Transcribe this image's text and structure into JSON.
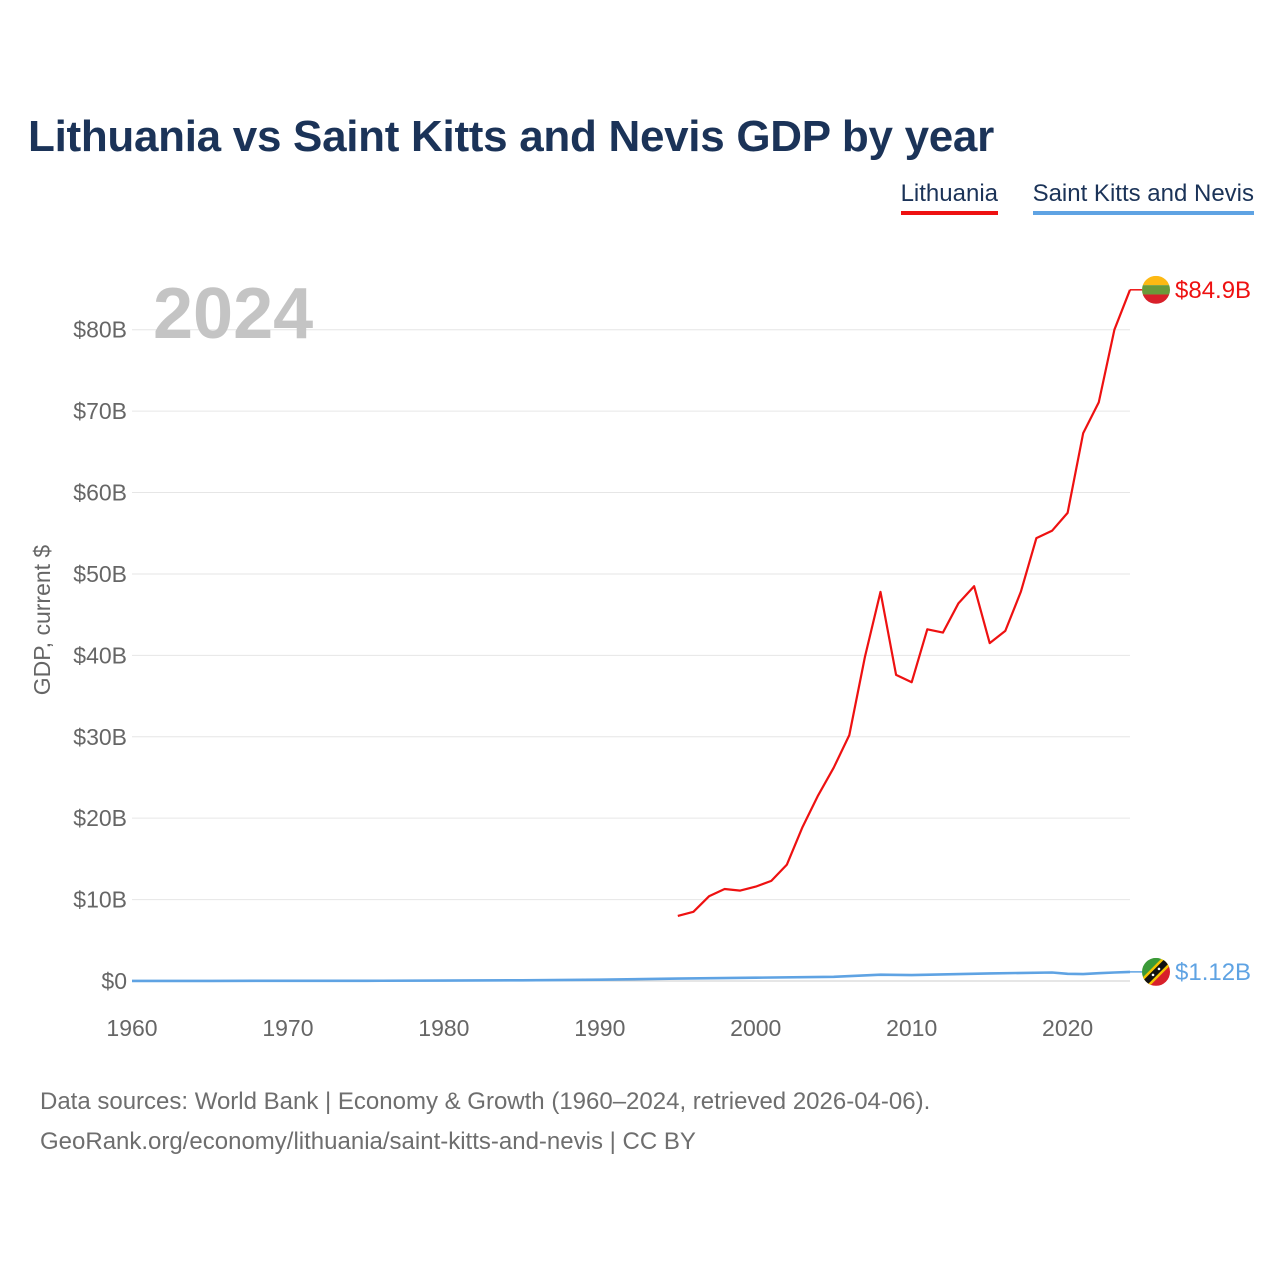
{
  "title": "Lithuania vs Saint Kitts and Nevis GDP by year",
  "legend": [
    {
      "label": "Lithuania",
      "color": "#ee1111"
    },
    {
      "label": "Saint Kitts and Nevis",
      "color": "#5fa3e3"
    }
  ],
  "footer": {
    "line1": "Data sources: World Bank | Economy & Growth (1960–2024, retrieved 2026-04-06).",
    "line2": "GeoRank.org/economy/lithuania/saint-kitts-and-nevis | CC BY"
  },
  "chart_data": {
    "type": "line",
    "title": "Lithuania vs Saint Kitts and Nevis GDP by year",
    "year_label": "2024",
    "xlabel": "",
    "ylabel": "GDP, current $",
    "xlim": [
      1960,
      2024
    ],
    "ylim": [
      0,
      85
    ],
    "units": "billions of current US$",
    "x_ticks": [
      1960,
      1970,
      1980,
      1990,
      2000,
      2010,
      2020
    ],
    "y_ticks": [
      0,
      10,
      20,
      30,
      40,
      50,
      60,
      70,
      80
    ],
    "y_tick_labels": [
      "$0",
      "$10B",
      "$20B",
      "$30B",
      "$40B",
      "$50B",
      "$60B",
      "$70B",
      "$80B"
    ],
    "series": [
      {
        "name": "Lithuania",
        "color": "#ee1111",
        "end_label": "$84.9B",
        "x": [
          1995,
          1996,
          1997,
          1998,
          1999,
          2000,
          2001,
          2002,
          2003,
          2004,
          2005,
          2006,
          2007,
          2008,
          2009,
          2010,
          2011,
          2012,
          2013,
          2014,
          2015,
          2016,
          2017,
          2018,
          2019,
          2020,
          2021,
          2022,
          2023,
          2024
        ],
        "values": [
          8.0,
          8.5,
          10.4,
          11.3,
          11.1,
          11.6,
          12.3,
          14.3,
          18.9,
          22.8,
          26.2,
          30.2,
          39.8,
          47.8,
          37.6,
          36.7,
          43.2,
          42.8,
          46.4,
          48.5,
          41.5,
          43.0,
          47.8,
          54.4,
          55.3,
          57.5,
          67.3,
          71.1,
          80.0,
          84.9
        ]
      },
      {
        "name": "Saint Kitts and Nevis",
        "color": "#5fa3e3",
        "end_label": "$1.12B",
        "x": [
          1960,
          1965,
          1970,
          1975,
          1980,
          1985,
          1990,
          1995,
          2000,
          2005,
          2008,
          2010,
          2015,
          2019,
          2020,
          2021,
          2022,
          2023,
          2024
        ],
        "values": [
          0.01,
          0.01,
          0.02,
          0.03,
          0.05,
          0.08,
          0.16,
          0.3,
          0.41,
          0.52,
          0.77,
          0.73,
          0.93,
          1.05,
          0.88,
          0.85,
          0.96,
          1.05,
          1.12
        ]
      }
    ]
  }
}
